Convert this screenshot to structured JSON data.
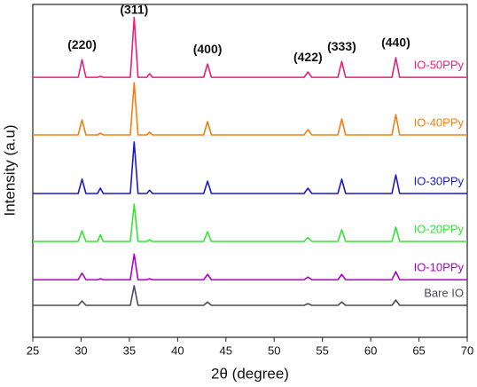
{
  "chart_data": {
    "type": "line",
    "xlabel": "2θ (degree)",
    "ylabel": "Intensity (a.u)",
    "x": [
      25,
      29.7,
      30.1,
      30.5,
      31.7,
      32.0,
      32.3,
      35.1,
      35.5,
      35.9,
      36.8,
      37.1,
      37.4,
      42.7,
      43.1,
      43.5,
      53.1,
      53.5,
      53.9,
      56.6,
      57.0,
      57.4,
      62.2,
      62.6,
      63.0,
      70
    ],
    "xlim": [
      25,
      70
    ],
    "xticks": [
      25,
      30,
      35,
      40,
      45,
      50,
      55,
      60,
      65,
      70
    ],
    "ylim": [
      0,
      100
    ],
    "series": [
      {
        "name": "Bare IO",
        "color": "#4a4a55",
        "values": [
          9.6,
          9.6,
          10.9,
          9.6,
          9.6,
          9.6,
          9.6,
          9.6,
          15.5,
          9.6,
          9.6,
          9.6,
          9.6,
          9.6,
          10.6,
          9.6,
          9.6,
          10.1,
          9.6,
          9.6,
          10.6,
          9.6,
          9.6,
          11.2,
          9.6,
          9.6
        ]
      },
      {
        "name": "IO-10PPy",
        "color": "#b000c8",
        "values": [
          17.3,
          17.3,
          19.3,
          17.3,
          17.3,
          17.6,
          17.3,
          17.3,
          25.0,
          17.3,
          17.3,
          17.6,
          17.3,
          17.3,
          18.9,
          17.3,
          17.3,
          18.1,
          17.3,
          17.3,
          18.9,
          17.3,
          17.3,
          19.7,
          17.3,
          17.3
        ]
      },
      {
        "name": "IO-20PPy",
        "color": "#33e633",
        "values": [
          28.8,
          28.8,
          32.0,
          28.8,
          28.8,
          30.8,
          28.8,
          28.8,
          40.0,
          28.8,
          28.8,
          29.3,
          28.8,
          28.8,
          31.7,
          28.8,
          28.8,
          30.0,
          28.8,
          28.8,
          32.3,
          28.8,
          28.8,
          33.1,
          28.8,
          28.8
        ]
      },
      {
        "name": "IO-30PPy",
        "color": "#1a1acc",
        "values": [
          43.2,
          43.2,
          47.5,
          43.2,
          43.2,
          44.8,
          43.2,
          43.2,
          58.7,
          43.2,
          43.2,
          44.2,
          43.2,
          43.2,
          46.9,
          43.2,
          43.2,
          44.8,
          43.2,
          43.2,
          47.5,
          43.2,
          43.2,
          48.8,
          43.2,
          43.2
        ]
      },
      {
        "name": "IO-40PPy",
        "color": "#f08010",
        "values": [
          60.8,
          60.8,
          65.3,
          60.8,
          60.8,
          61.3,
          60.8,
          60.8,
          76.5,
          60.8,
          60.8,
          61.6,
          60.8,
          60.8,
          64.8,
          60.8,
          60.8,
          62.4,
          60.8,
          60.8,
          65.6,
          60.8,
          60.8,
          66.9,
          60.8,
          60.8
        ]
      },
      {
        "name": "IO-50PPy",
        "color": "#e8207a",
        "values": [
          78.1,
          78.1,
          83.4,
          78.1,
          78.1,
          78.4,
          78.1,
          78.1,
          96.1,
          78.1,
          78.1,
          79.2,
          78.1,
          78.1,
          82.1,
          78.1,
          78.1,
          79.7,
          78.1,
          78.1,
          82.9,
          78.1,
          78.1,
          84.0,
          78.1,
          78.1
        ]
      }
    ],
    "annotations": [
      {
        "text": "(220)",
        "x": 30.1
      },
      {
        "text": "(311)",
        "x": 35.5
      },
      {
        "text": "(400)",
        "x": 43.1
      },
      {
        "text": "(422)",
        "x": 53.5
      },
      {
        "text": "(333)",
        "x": 57.0
      },
      {
        "text": "(440)",
        "x": 62.6
      }
    ]
  }
}
